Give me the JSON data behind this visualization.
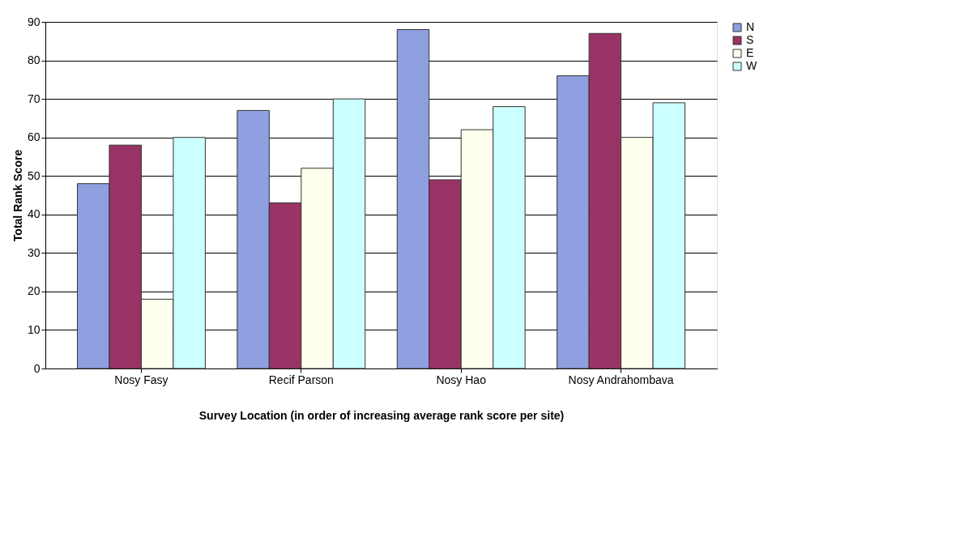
{
  "chart_data": {
    "type": "bar",
    "xlabel": "Survey Location (in order of increasing average rank score per site)",
    "ylabel": "Total Rank Score",
    "categories": [
      "Nosy Fasy",
      "Recif Parson",
      "Nosy Hao",
      "Nosy Andrahombava"
    ],
    "series": [
      {
        "name": "N",
        "color": "#8f9fdf",
        "values": [
          48,
          67,
          88,
          76
        ]
      },
      {
        "name": "S",
        "color": "#993366",
        "values": [
          58,
          43,
          49,
          87
        ]
      },
      {
        "name": "E",
        "color": "#ffffee",
        "values": [
          18,
          52,
          62,
          60
        ]
      },
      {
        "name": "W",
        "color": "#ccffff",
        "values": [
          60,
          70,
          68,
          69
        ]
      }
    ],
    "ylim": [
      0,
      90
    ],
    "yticks": [
      0,
      10,
      20,
      30,
      40,
      50,
      60,
      70,
      80,
      90
    ],
    "grid": "y",
    "legend": "right"
  }
}
